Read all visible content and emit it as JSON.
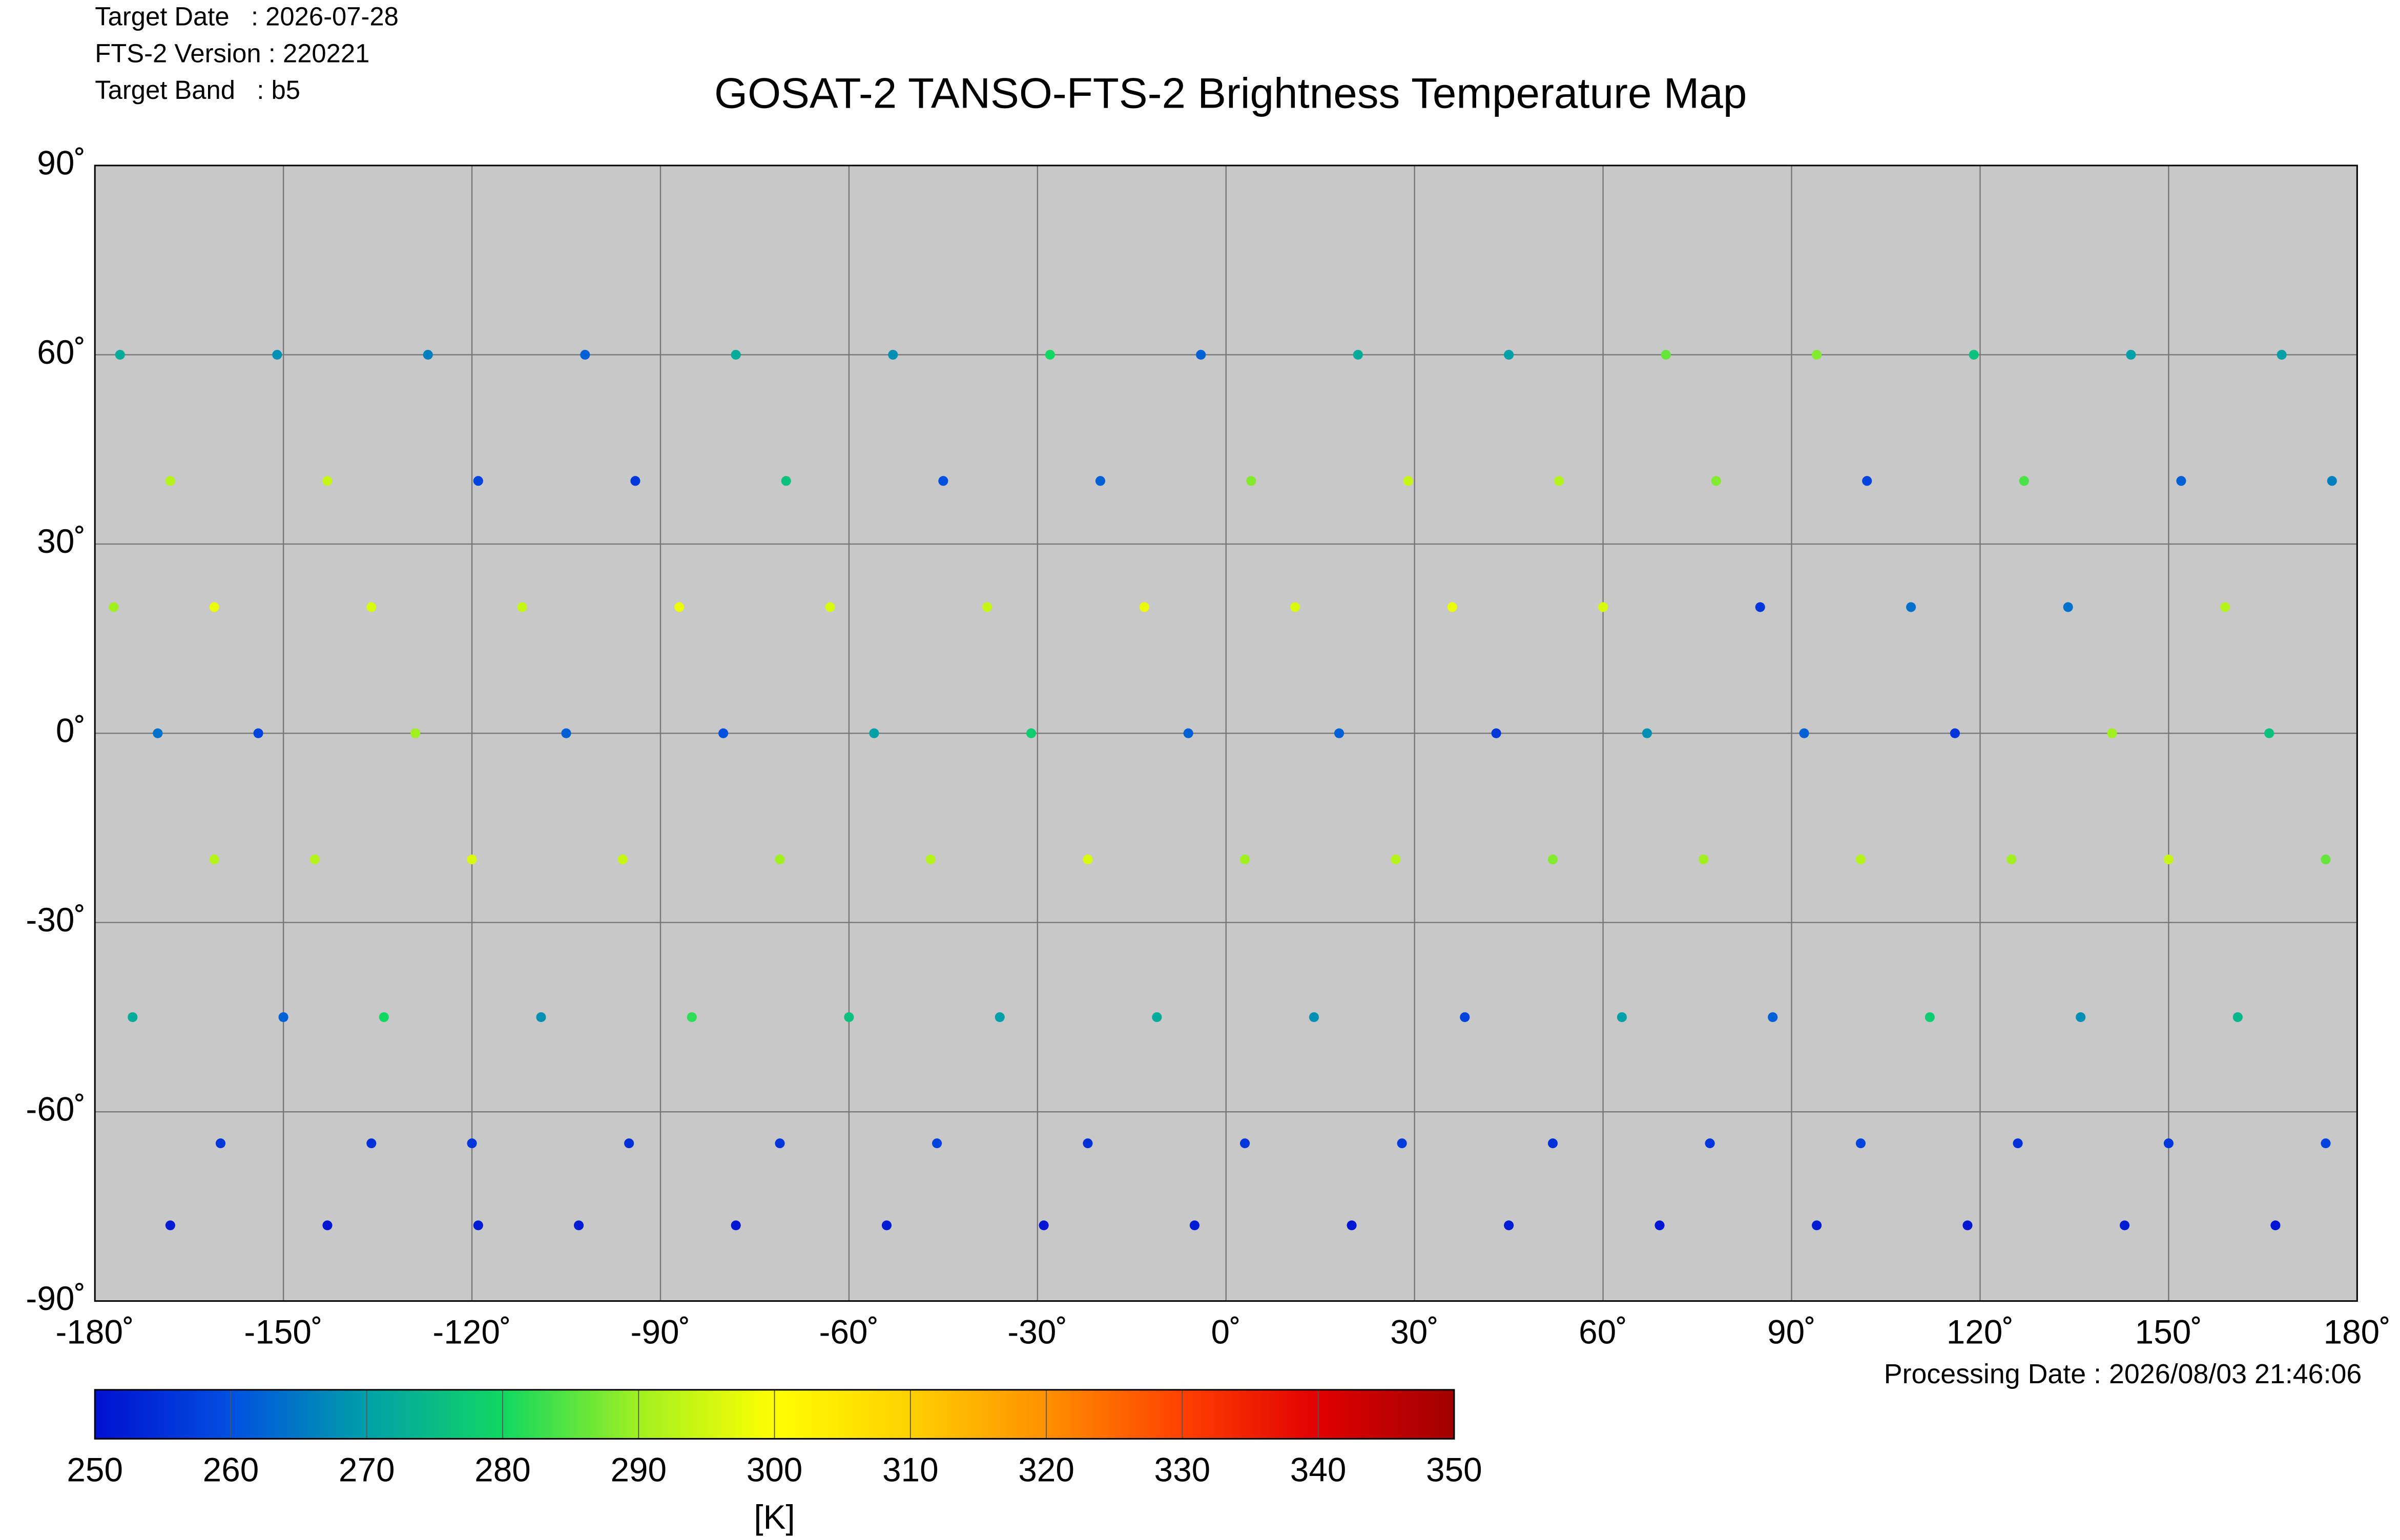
{
  "header": {
    "target_date": "Target Date   : 2026-07-28",
    "version": "FTS-2 Version : 220221",
    "band": "Target Band   : b5"
  },
  "footer": {
    "processing_date": "Processing Date : 2026/08/03 21:46:06"
  },
  "chart_data": {
    "type": "scatter",
    "title": "GOSAT-2 TANSO-FTS-2 Brightness Temperature Map",
    "xlim": [
      -180,
      180
    ],
    "ylim": [
      -90,
      90
    ],
    "grid": true,
    "xticks": [
      {
        "value": -180,
        "label": "-180˚"
      },
      {
        "value": -150,
        "label": "-150˚"
      },
      {
        "value": -120,
        "label": "-120˚"
      },
      {
        "value": -90,
        "label": "-90˚"
      },
      {
        "value": -60,
        "label": "-60˚"
      },
      {
        "value": -30,
        "label": "-30˚"
      },
      {
        "value": 0,
        "label": "0˚"
      },
      {
        "value": 30,
        "label": "30˚"
      },
      {
        "value": 60,
        "label": "60˚"
      },
      {
        "value": 90,
        "label": "90˚"
      },
      {
        "value": 120,
        "label": "120˚"
      },
      {
        "value": 150,
        "label": "150˚"
      },
      {
        "value": 180,
        "label": "180˚"
      }
    ],
    "yticks": [
      {
        "value": 90,
        "label": "90˚"
      },
      {
        "value": 60,
        "label": "60˚"
      },
      {
        "value": 30,
        "label": "30˚"
      },
      {
        "value": 0,
        "label": "0˚"
      },
      {
        "value": -30,
        "label": "-30˚"
      },
      {
        "value": -60,
        "label": "-60˚"
      },
      {
        "value": -90,
        "label": "-90˚"
      }
    ],
    "x": [
      -176,
      -168,
      -161,
      -154,
      -145,
      -134,
      -120,
      -103,
      -151,
      -143,
      -136,
      -129,
      -120,
      -109,
      -95,
      -78,
      -127,
      -119,
      -112,
      -105,
      -96,
      -85,
      -71,
      -54,
      -102,
      -94,
      -87,
      -80,
      -71,
      -60,
      -46,
      -29,
      -78,
      -70,
      -63,
      -56,
      -47,
      -36,
      -22,
      -5,
      -53,
      -45,
      -38,
      -31,
      -22,
      -11,
      3,
      20,
      -28,
      -20,
      -13,
      -6,
      3,
      14,
      28,
      45,
      -4,
      4,
      11,
      18,
      27,
      38,
      52,
      69,
      21,
      29,
      36,
      43,
      52,
      63,
      77,
      94,
      45,
      53,
      60,
      67,
      76,
      87,
      101,
      118,
      70,
      78,
      85,
      92,
      101,
      112,
      126,
      143,
      94,
      102,
      109,
      116,
      125,
      136,
      150,
      167,
      119,
      127,
      134,
      141,
      150,
      161,
      175,
      -168,
      144,
      152,
      159,
      166,
      175,
      -174,
      -160,
      -143,
      168,
      176,
      -177,
      -170,
      -161,
      -150,
      -136,
      -119
    ],
    "y": [
      60,
      40,
      20,
      0,
      -20,
      -45,
      -65,
      -78,
      60,
      40,
      20,
      0,
      -20,
      -45,
      -65,
      -78,
      60,
      40,
      20,
      0,
      -20,
      -45,
      -65,
      -78,
      60,
      40,
      20,
      0,
      -20,
      -45,
      -65,
      -78,
      60,
      40,
      20,
      0,
      -20,
      -45,
      -65,
      -78,
      60,
      40,
      20,
      0,
      -20,
      -45,
      -65,
      -78,
      60,
      40,
      20,
      0,
      -20,
      -45,
      -65,
      -78,
      60,
      40,
      20,
      0,
      -20,
      -45,
      -65,
      -78,
      60,
      40,
      20,
      0,
      -20,
      -45,
      -65,
      -78,
      60,
      40,
      20,
      0,
      -20,
      -45,
      -65,
      -78,
      60,
      40,
      20,
      0,
      -20,
      -45,
      -65,
      -78,
      60,
      40,
      20,
      0,
      -20,
      -45,
      -65,
      -78,
      60,
      40,
      20,
      0,
      -20,
      -45,
      -65,
      -78,
      60,
      40,
      20,
      0,
      -20,
      -45,
      -65,
      -78,
      60,
      40,
      20,
      0,
      -20,
      -45,
      -65,
      -78
    ],
    "values": [
      272,
      292,
      298,
      258,
      292,
      280,
      256,
      252,
      268,
      294,
      296,
      290,
      296,
      268,
      255,
      251,
      266,
      258,
      294,
      262,
      294,
      282,
      256,
      252,
      262,
      256,
      298,
      260,
      290,
      276,
      258,
      251,
      272,
      276,
      296,
      270,
      292,
      270,
      255,
      252,
      268,
      260,
      294,
      278,
      296,
      272,
      256,
      251,
      280,
      262,
      298,
      262,
      290,
      268,
      257,
      252,
      262,
      288,
      296,
      262,
      292,
      258,
      255,
      251,
      272,
      294,
      298,
      256,
      288,
      270,
      256,
      252,
      270,
      292,
      296,
      268,
      290,
      262,
      258,
      251,
      286,
      288,
      256,
      262,
      292,
      278,
      255,
      252,
      288,
      258,
      264,
      256,
      290,
      268,
      256,
      251,
      276,
      284,
      264,
      290,
      294,
      274,
      258,
      252,
      270,
      262,
      292,
      276,
      286,
      272,
      256,
      251,
      270,
      266,
      290,
      264,
      292,
      262,
      255,
      252
    ]
  },
  "colorbar": {
    "ticks": [
      250,
      260,
      270,
      280,
      290,
      300,
      310,
      320,
      330,
      340,
      350
    ],
    "colors": [
      "#0010d0",
      "#0050e0",
      "#00a0a8",
      "#10d860",
      "#a0f020",
      "#ffff00",
      "#ffd000",
      "#ff9000",
      "#ff4000",
      "#e00000",
      "#a00000"
    ],
    "label": "[K]"
  }
}
